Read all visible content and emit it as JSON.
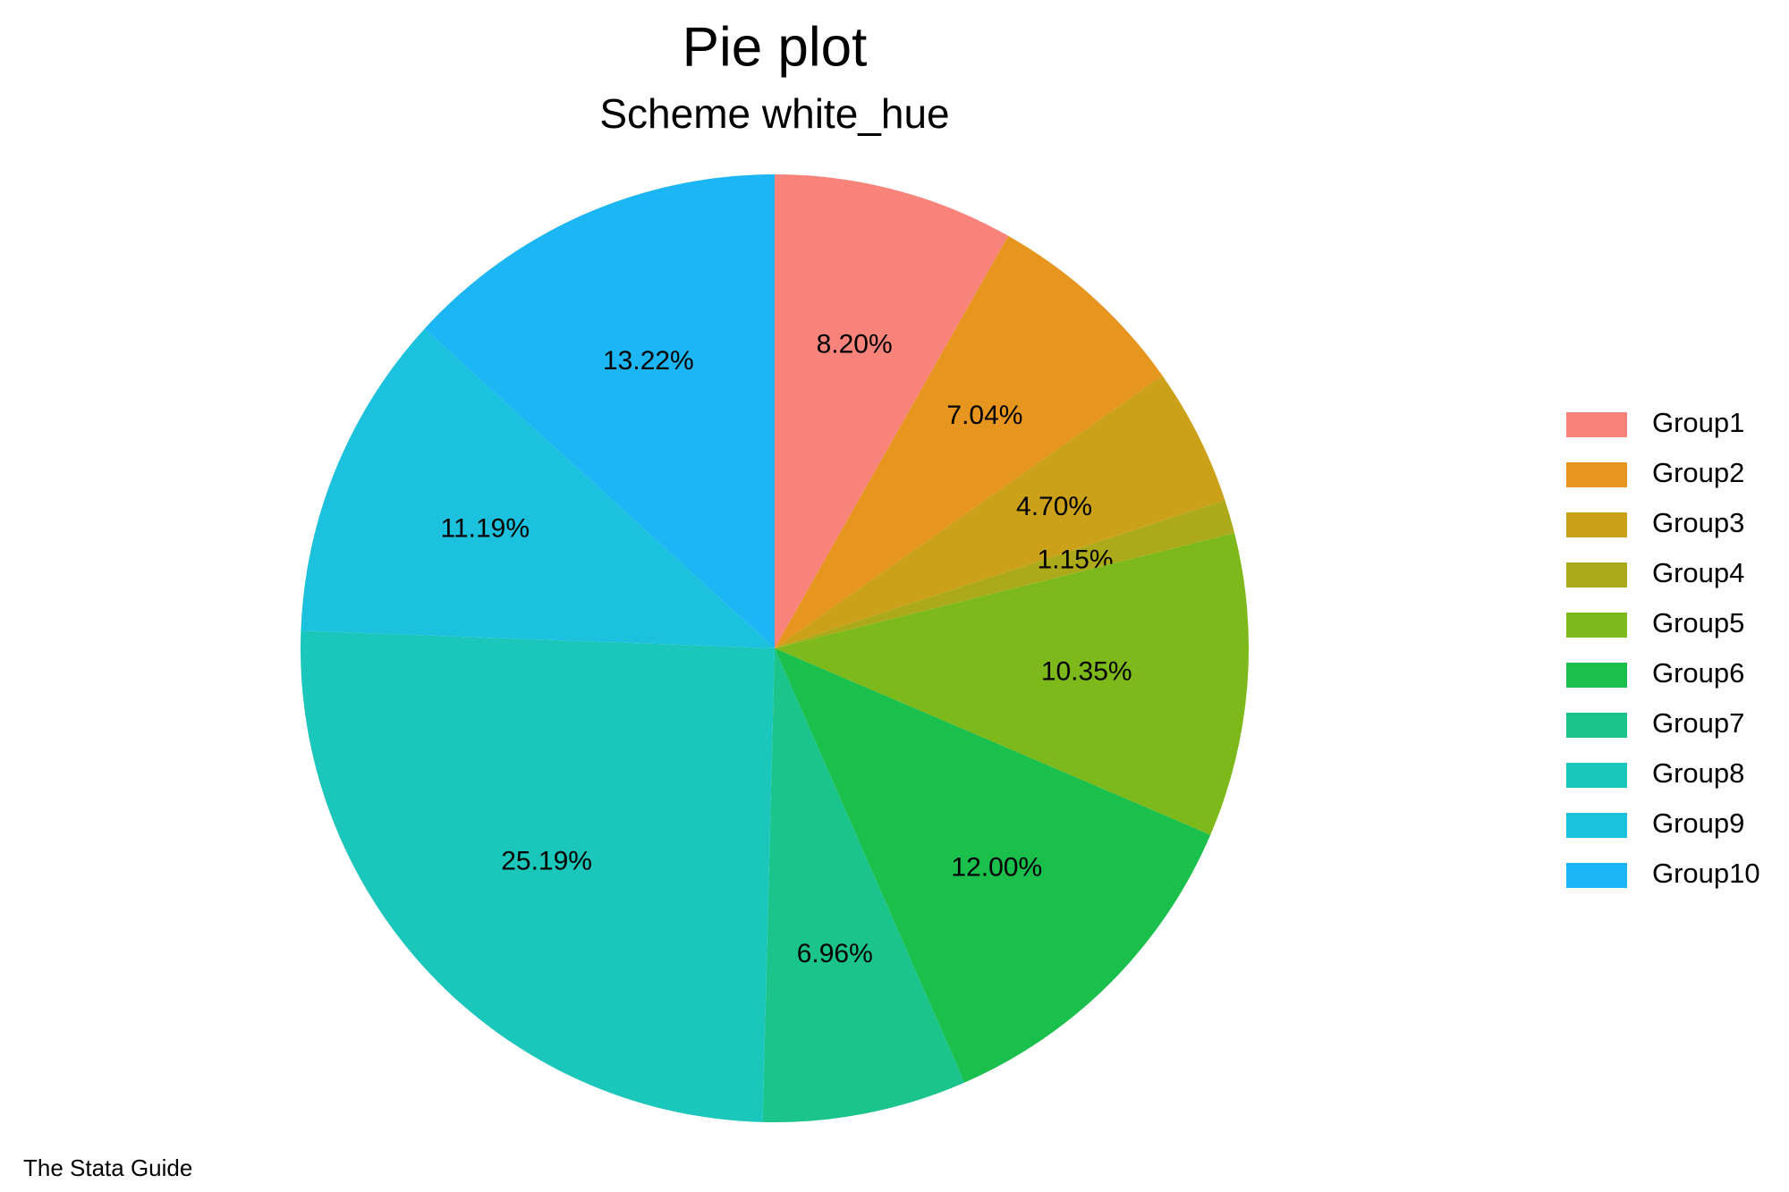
{
  "chart_data": {
    "type": "pie",
    "title": "Pie plot",
    "subtitle": "Scheme white_hue",
    "caption": "The Stata Guide",
    "categories": [
      "Group1",
      "Group2",
      "Group3",
      "Group4",
      "Group5",
      "Group6",
      "Group7",
      "Group8",
      "Group9",
      "Group10"
    ],
    "values": [
      8.2,
      7.04,
      4.7,
      1.15,
      10.35,
      12.0,
      6.96,
      25.19,
      11.19,
      13.22
    ],
    "value_labels": [
      "8.20%",
      "7.04%",
      "4.70%",
      "1.15%",
      "10.35%",
      "12.00%",
      "6.96%",
      "25.19%",
      "11.19%",
      "13.22%"
    ],
    "colors": [
      "#f8837b",
      "#e6951e",
      "#cca11a",
      "#acaa1b",
      "#7db91a",
      "#1bbf4c",
      "#1ac48a",
      "#1bc6bb",
      "#1bc1dd",
      "#1cb6f5"
    ],
    "legend": "right"
  }
}
